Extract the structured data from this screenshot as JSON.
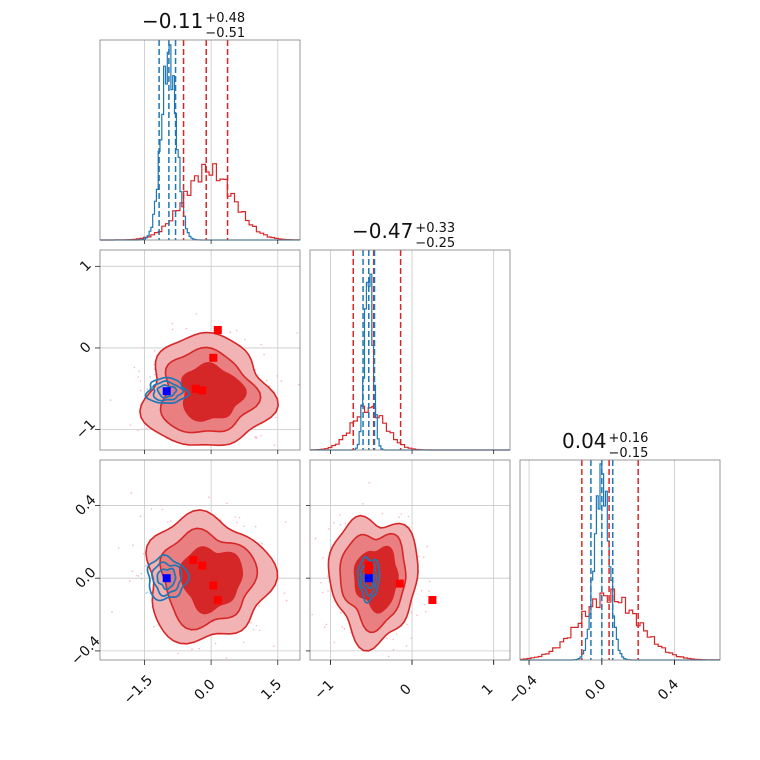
{
  "colors": {
    "prior": "#d62728",
    "posterior": "#1f77b4",
    "prior_fill_light": "#f2b3b4",
    "prior_fill_mid": "#e97f80",
    "prior_fill_dark": "#d62728",
    "marker_prior": "#ff0000",
    "marker_truth": "#0000ff",
    "scatter_prior": "#f4b8c6",
    "scatter_post": "#a9c8e6"
  },
  "chart_data": {
    "type": "corner",
    "parameters": [
      {
        "title_value": "−0.11",
        "title_plus": "+0.48",
        "title_minus": "−0.51",
        "range": [
          -2.5,
          2.0
        ],
        "ticks": [
          -1.5,
          0.0,
          1.5
        ],
        "tick_labels": [
          "−1.5",
          "0.0",
          "1.5"
        ],
        "posterior_hist": {
          "peak": -0.95,
          "sigma": 0.17,
          "height": 0.92
        },
        "prior_hist": {
          "peak": -0.05,
          "sigma": 0.55,
          "height": 0.35
        },
        "posterior_quantiles": [
          -1.17,
          -0.95,
          -0.8
        ],
        "prior_quantiles": [
          -0.62,
          -0.11,
          0.37
        ]
      },
      {
        "title_value": "−0.47",
        "title_plus": "+0.33",
        "title_minus": "−0.25",
        "range": [
          -1.25,
          1.2
        ],
        "ticks": [
          -1,
          0,
          1
        ],
        "tick_labels": [
          "−1",
          "0",
          "1"
        ],
        "posterior_hist": {
          "peak": -0.53,
          "sigma": 0.05,
          "height": 0.9
        },
        "prior_hist": {
          "peak": -0.53,
          "sigma": 0.2,
          "height": 0.21
        },
        "posterior_quantiles": [
          -0.6,
          -0.53,
          -0.46
        ],
        "prior_quantiles": [
          -0.72,
          -0.47,
          -0.14
        ]
      },
      {
        "title_value": "0.04",
        "title_plus": "+0.16",
        "title_minus": "−0.15",
        "range": [
          -0.45,
          0.65
        ],
        "ticks": [
          -0.4,
          0.0,
          0.4
        ],
        "tick_labels": [
          "−0.4",
          "0.0",
          "0.4"
        ],
        "posterior_hist": {
          "peak": 0.0,
          "sigma": 0.04,
          "height": 0.92
        },
        "prior_hist": {
          "peak": 0.04,
          "sigma": 0.16,
          "height": 0.32
        },
        "posterior_quantiles": [
          -0.06,
          0.0,
          0.06
        ],
        "prior_quantiles": [
          -0.11,
          0.04,
          0.2
        ]
      }
    ],
    "pair_panels": [
      {
        "x_param": 0,
        "y_param": 1,
        "prior_center": [
          -0.1,
          -0.55
        ],
        "prior_sigma": [
          0.65,
          0.32
        ],
        "posterior_center": [
          -1.0,
          -0.53
        ],
        "posterior_sigma": [
          0.17,
          0.06
        ],
        "prior_markers": [
          [
            0.15,
            0.22
          ],
          [
            0.05,
            -0.12
          ],
          [
            -0.35,
            -0.5
          ],
          [
            -0.2,
            -0.52
          ]
        ],
        "truth_markers": [
          [
            -1.0,
            -0.53
          ]
        ]
      },
      {
        "x_param": 0,
        "y_param": 2,
        "prior_center": [
          -0.1,
          0.0
        ],
        "prior_sigma": [
          0.65,
          0.16
        ],
        "posterior_center": [
          -1.0,
          0.0
        ],
        "posterior_sigma": [
          0.17,
          0.045
        ],
        "prior_markers": [
          [
            -0.4,
            0.1
          ],
          [
            -0.2,
            0.07
          ],
          [
            0.05,
            -0.04
          ],
          [
            0.15,
            -0.12
          ]
        ],
        "truth_markers": [
          [
            -1.0,
            0.0
          ]
        ]
      },
      {
        "x_param": 1,
        "y_param": 2,
        "prior_center": [
          -0.47,
          0.0
        ],
        "prior_sigma": [
          0.25,
          0.16
        ],
        "posterior_center": [
          -0.53,
          0.0
        ],
        "posterior_sigma": [
          0.05,
          0.045
        ],
        "prior_markers": [
          [
            -0.53,
            0.07
          ],
          [
            -0.53,
            0.04
          ],
          [
            -0.15,
            -0.03
          ],
          [
            0.25,
            -0.12
          ]
        ],
        "truth_markers": [
          [
            -0.53,
            0.0
          ]
        ]
      }
    ]
  }
}
